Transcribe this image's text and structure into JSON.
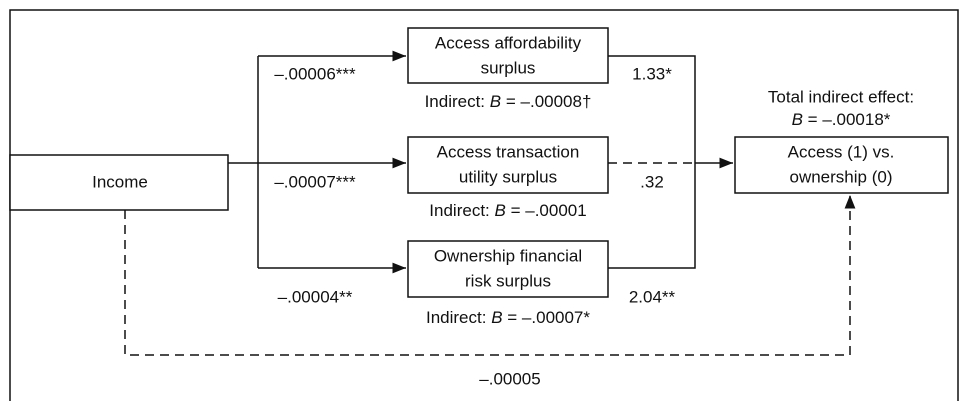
{
  "nodes": [
    {
      "lines": [
        "Income"
      ]
    },
    {
      "lines": [
        "Access affordability",
        "surplus"
      ]
    },
    {
      "lines": [
        "Access transaction",
        "utility surplus"
      ]
    },
    {
      "lines": [
        "Ownership financial",
        "risk surplus"
      ]
    },
    {
      "lines": [
        "Access (1) vs.",
        "ownership (0)"
      ]
    }
  ],
  "a_paths": [
    "–.00006***",
    "–.00007***",
    "–.00004**"
  ],
  "b_paths": [
    "1.33*",
    ".32",
    "2.04**"
  ],
  "indirect": [
    {
      "prefix": "Indirect:",
      "symbol": "B",
      "value": "= –.00008†"
    },
    {
      "prefix": "Indirect:",
      "symbol": "B",
      "value": "= –.00001"
    },
    {
      "prefix": "Indirect:",
      "symbol": "B",
      "value": "= –.00007*"
    }
  ],
  "total_indirect": {
    "label": "Total indirect effect:",
    "symbol": "B",
    "value": "= –.00018*"
  },
  "direct_path": "–.00005"
}
